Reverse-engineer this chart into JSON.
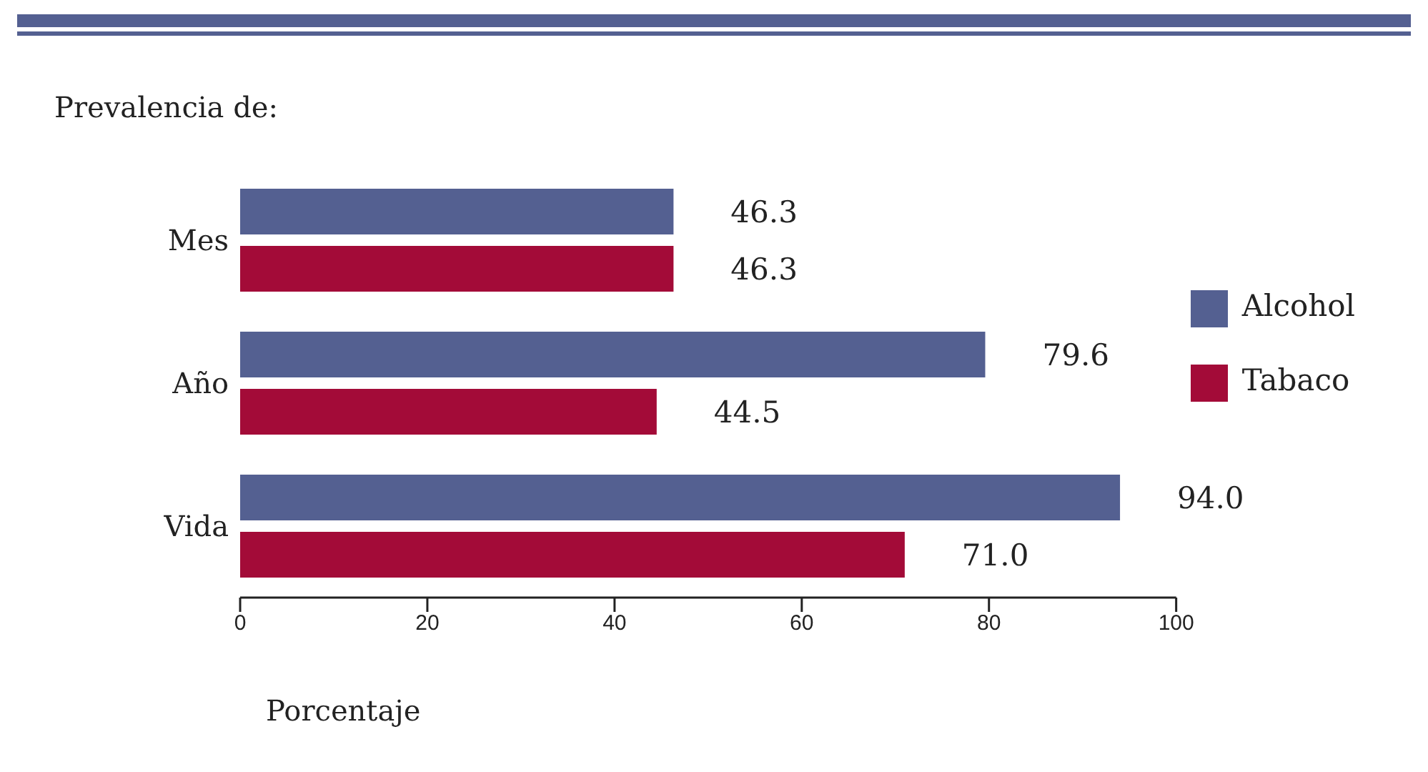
{
  "chart_data": {
    "type": "bar",
    "orientation": "horizontal",
    "title": "Prevalencia de:",
    "xlabel": "Porcentaje",
    "categories": [
      "Mes",
      "Año",
      "Vida"
    ],
    "series": [
      {
        "name": "Alcohol",
        "color": "#546091",
        "values": [
          46.3,
          79.6,
          94.0
        ],
        "value_labels": [
          "46.3",
          "79.6",
          "94.0"
        ]
      },
      {
        "name": "Tabaco",
        "color": "#a30b38",
        "values": [
          46.3,
          44.5,
          71.0
        ],
        "value_labels": [
          "46.3",
          "44.5",
          "71.0"
        ]
      }
    ],
    "xlim": [
      0,
      100
    ],
    "xticks": [
      0,
      20,
      40,
      60,
      80,
      100
    ],
    "grid": false,
    "legend": "right"
  }
}
